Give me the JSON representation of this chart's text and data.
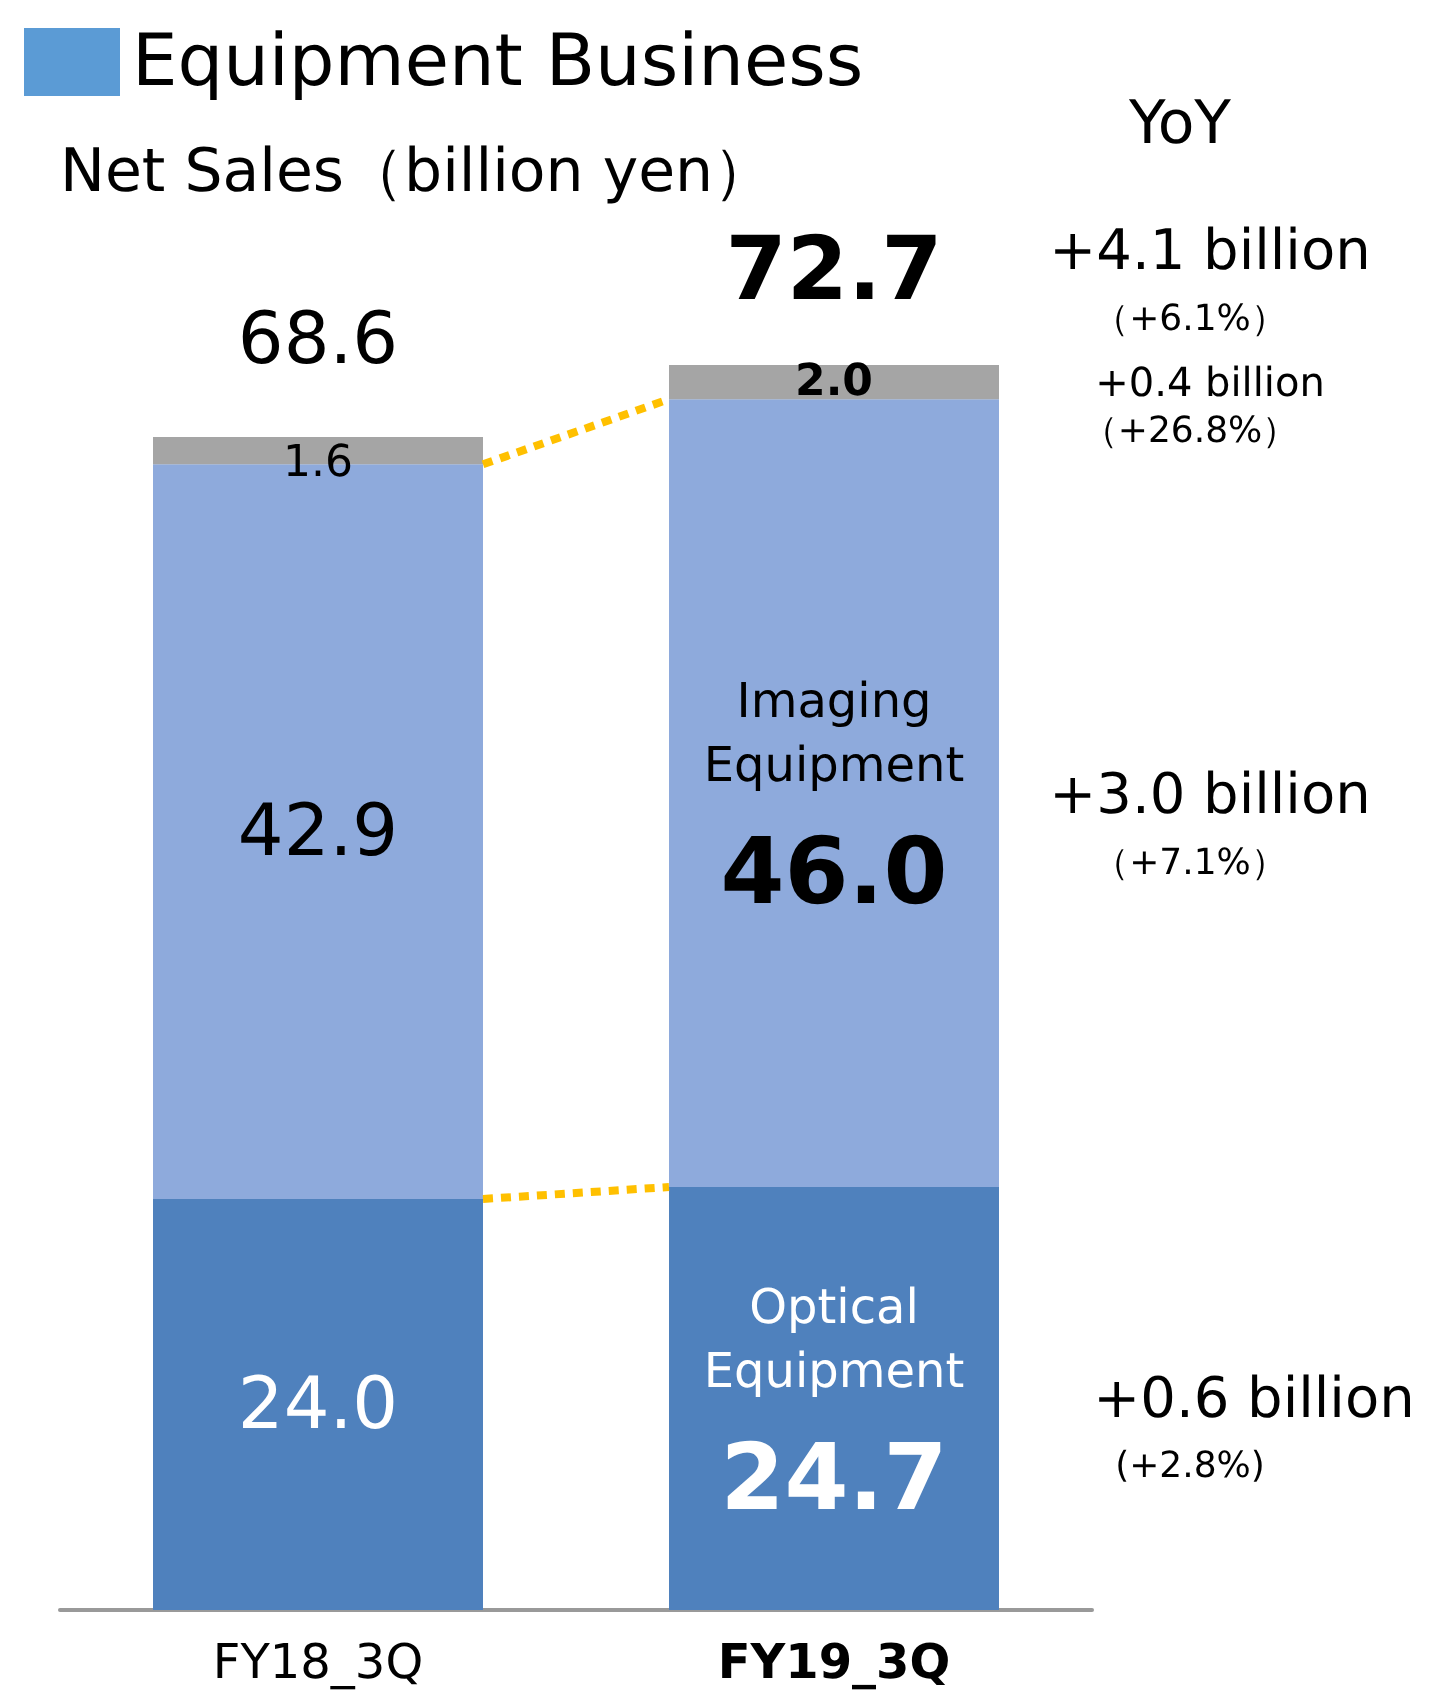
{
  "chart_data": {
    "type": "bar",
    "stacked": true,
    "title": "Equipment Business",
    "subtitle": "Net Sales（billion yen）",
    "categories": [
      "FY18_3Q",
      "FY19_3Q"
    ],
    "series": [
      {
        "name": "Optical Equipment",
        "color": "#4f81bd",
        "values": [
          24.0,
          24.7
        ],
        "value_labels": [
          "24.0",
          "24.7"
        ]
      },
      {
        "name": "Imaging Equipment",
        "color": "#8eaadc",
        "values": [
          42.9,
          46.0
        ],
        "value_labels": [
          "42.9",
          "46.0"
        ]
      },
      {
        "color": "#a5a5a5",
        "values": [
          1.6,
          2.0
        ],
        "value_labels": [
          "1.6",
          "2.0"
        ]
      }
    ],
    "totals": [
      "68.6",
      "72.7"
    ],
    "annotations": [
      "YoY",
      "+4.1 billion",
      "（+6.1%）",
      "+0.4 billion",
      "（+26.8%）",
      "+3.0 billion",
      "（+7.1%）",
      "+0.6 billion",
      "(+2.8%)"
    ]
  }
}
